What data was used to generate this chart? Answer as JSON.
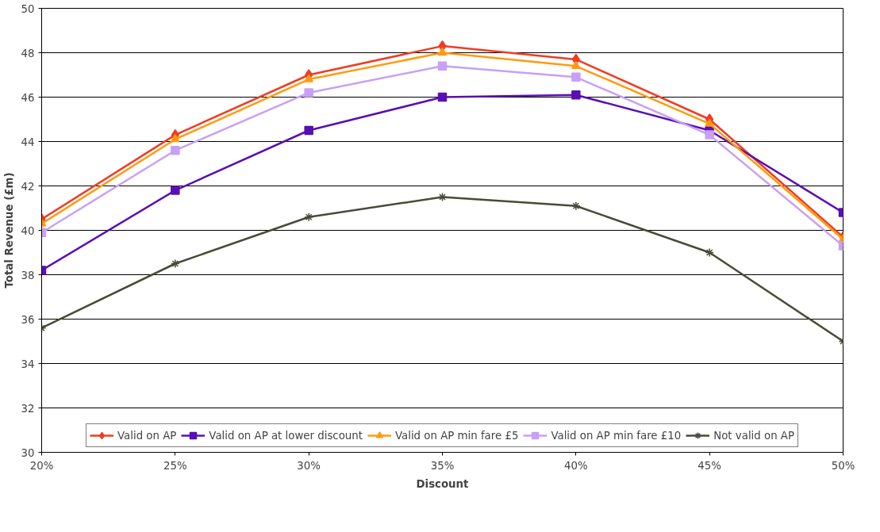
{
  "chart_data": {
    "type": "line",
    "xlabel": "Discount",
    "ylabel": "Total Revenue (£m)",
    "x": [
      20,
      25,
      30,
      35,
      40,
      45,
      50
    ],
    "xlim": [
      20,
      50
    ],
    "xticks": [
      {
        "value": 20,
        "label": "20%"
      },
      {
        "value": 25,
        "label": "25%"
      },
      {
        "value": 30,
        "label": "30%"
      },
      {
        "value": 35,
        "label": "35%"
      },
      {
        "value": 40,
        "label": "40%"
      },
      {
        "value": 45,
        "label": "45%"
      },
      {
        "value": 50,
        "label": "50%"
      }
    ],
    "ylim": [
      30,
      50
    ],
    "yticks": [
      30,
      32,
      34,
      36,
      38,
      40,
      42,
      44,
      46,
      48,
      50
    ],
    "grid": "y",
    "legend": "bottom",
    "line_style": "solid",
    "series": [
      {
        "name": "Valid on AP",
        "color": "#f03c23",
        "marker": "diamond",
        "values": [
          40.5,
          44.3,
          47.0,
          48.3,
          47.7,
          45.0,
          39.7
        ]
      },
      {
        "name": "Valid on AP at lower discount",
        "color": "#5a0fb4",
        "marker": "square",
        "values": [
          38.2,
          41.8,
          44.5,
          46.0,
          46.1,
          44.5,
          40.8
        ]
      },
      {
        "name": "Valid on AP min fare £5",
        "color": "#ff9a10",
        "marker": "triangle",
        "values": [
          40.3,
          44.1,
          46.8,
          48.0,
          47.4,
          44.8,
          39.6
        ]
      },
      {
        "name": "Valid on AP min fare £10",
        "color": "#c8a0f5",
        "marker": "square",
        "values": [
          39.9,
          43.6,
          46.2,
          47.4,
          46.9,
          44.3,
          39.3
        ]
      },
      {
        "name": "Not valid on AP",
        "color": "#4a4a38",
        "marker": "cross",
        "values": [
          35.6,
          38.5,
          40.6,
          41.5,
          41.1,
          39.0,
          35.0
        ]
      }
    ]
  }
}
